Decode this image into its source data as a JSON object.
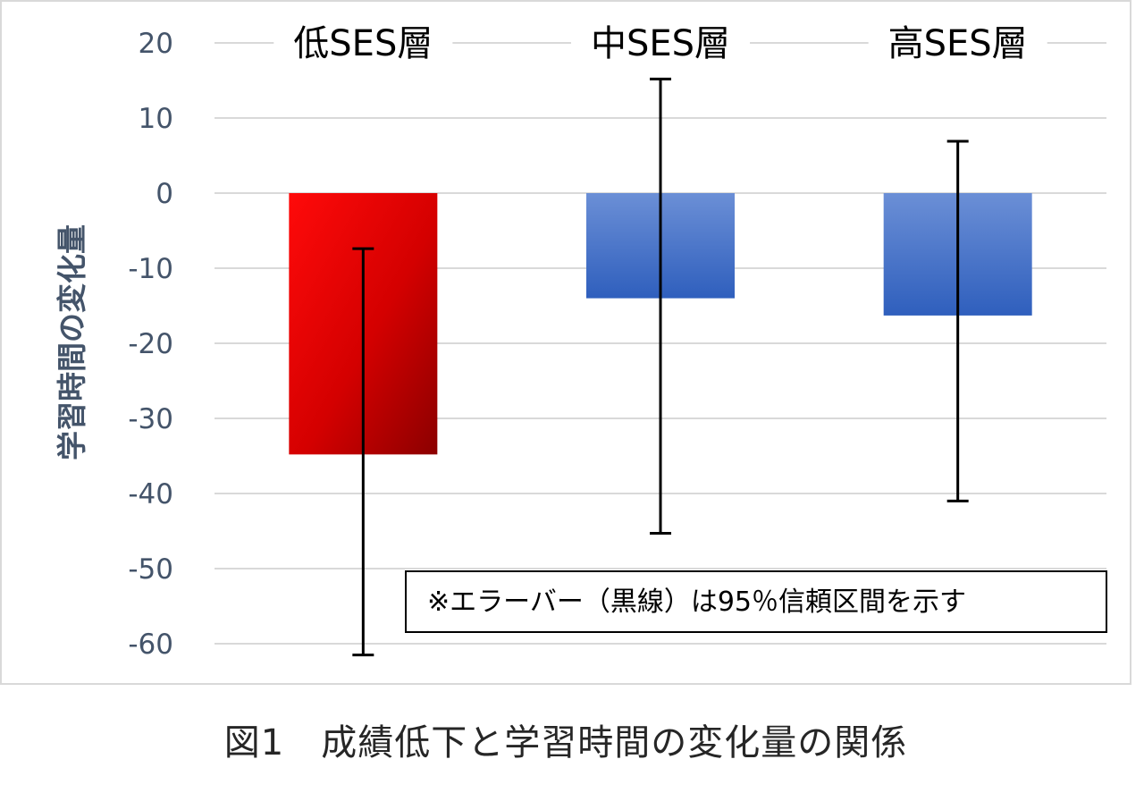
{
  "chart_data": {
    "type": "bar",
    "categories": [
      "低SES層",
      "中SES層",
      "高SES層"
    ],
    "values": [
      -34.8,
      -14,
      -16.3
    ],
    "error_bars": [
      {
        "low": -61.5,
        "high": -7.4
      },
      {
        "low": -45.3,
        "high": 15.2
      },
      {
        "low": -41,
        "high": 6.9
      }
    ],
    "ylabel": "学習時間の変化量",
    "ylim": [
      -60,
      20
    ],
    "yticks": [
      20,
      10,
      0,
      -10,
      -20,
      -30,
      -40,
      -50,
      -60
    ],
    "grid": true,
    "bar_colors": [
      "#e01010",
      "#4472c4",
      "#4472c4"
    ],
    "note": "※エラーバー（黒線）は95％信頼区間を示す"
  },
  "caption": "図1　成績低下と学習時間の変化量の関係"
}
